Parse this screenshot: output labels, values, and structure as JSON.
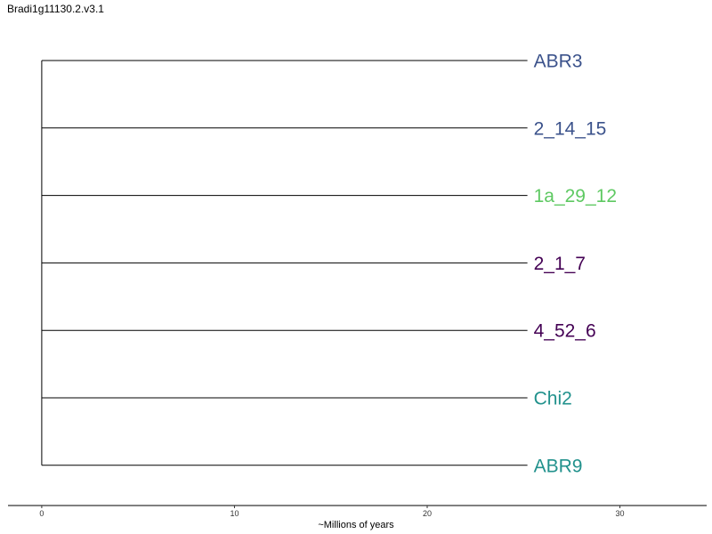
{
  "title": "Bradi1g11130.2.v3.1",
  "axis": {
    "label": "~Millions of years",
    "ticks": [
      0,
      10,
      20,
      30
    ],
    "range": [
      -1.75,
      34.5
    ]
  },
  "tree": {
    "branch_length": 25.2,
    "tips": [
      {
        "label": "ABR3",
        "color": "#3b528b"
      },
      {
        "label": "2_14_15",
        "color": "#3b528b"
      },
      {
        "label": "1a_29_12",
        "color": "#5ec962"
      },
      {
        "label": "2_1_7",
        "color": "#440154"
      },
      {
        "label": "4_52_6",
        "color": "#440154"
      },
      {
        "label": "Chi2",
        "color": "#21918c"
      },
      {
        "label": "ABR9",
        "color": "#21918c"
      }
    ]
  }
}
